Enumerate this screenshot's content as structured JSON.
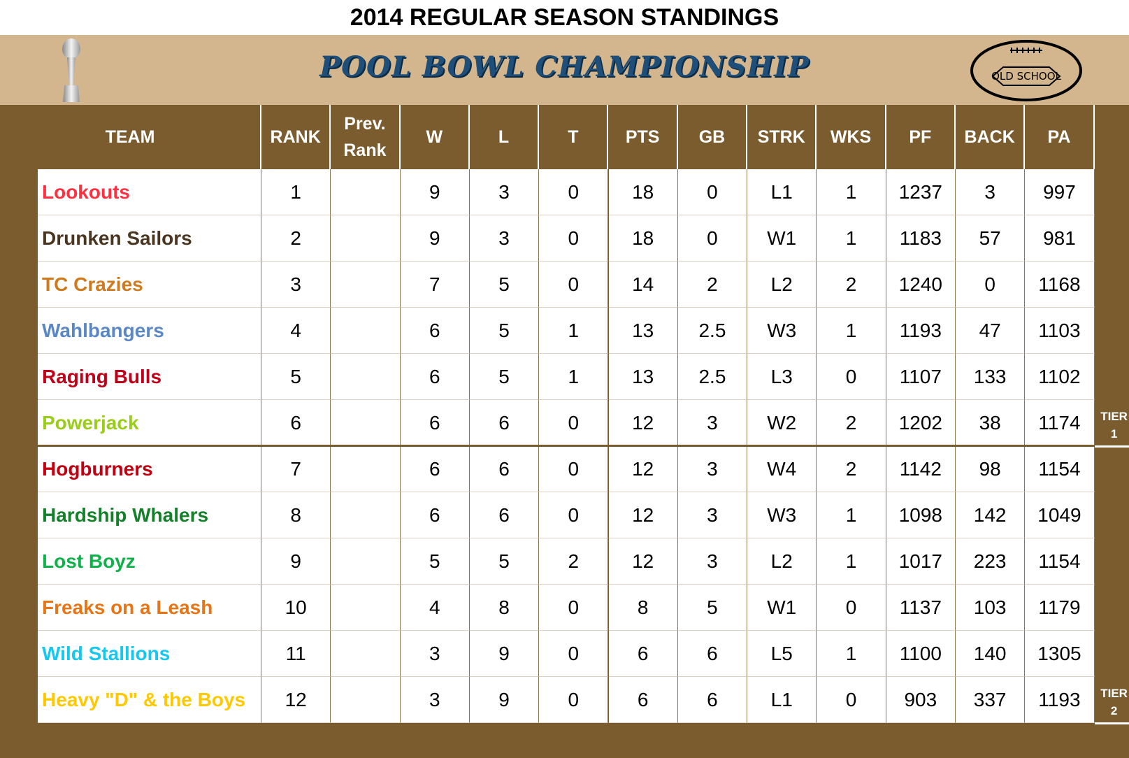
{
  "header": {
    "title": "2014 REGULAR SEASON STANDINGS",
    "banner": "POOL BOWL CHAMPIONSHIP",
    "logo_text": "OLD SCHOOL"
  },
  "table": {
    "columns": [
      "TEAM",
      "RANK",
      "Prev. Rank",
      "W",
      "L",
      "T",
      "PTS",
      "GB",
      "STRK",
      "WKS",
      "PF",
      "BACK",
      "PA"
    ],
    "rows": [
      {
        "team": "Lookouts",
        "color": "#ff3040",
        "values": [
          1,
          null,
          9,
          3,
          0,
          18,
          0,
          "L1",
          1,
          1237,
          3,
          997
        ]
      },
      {
        "team": "Drunken Sailors",
        "color": "#4a3520",
        "values": [
          2,
          null,
          9,
          3,
          0,
          18,
          0,
          "W1",
          1,
          1183,
          57,
          981
        ]
      },
      {
        "team": "TC Crazies",
        "color": "#d07a1e",
        "values": [
          3,
          null,
          7,
          5,
          0,
          14,
          2,
          "L2",
          2,
          1240,
          0,
          1168
        ]
      },
      {
        "team": "Wahlbangers",
        "color": "#5b87c5",
        "values": [
          4,
          null,
          6,
          5,
          1,
          13,
          2.5,
          "W3",
          1,
          1193,
          47,
          1103
        ]
      },
      {
        "team": "Raging Bulls",
        "color": "#c00018",
        "values": [
          5,
          null,
          6,
          5,
          1,
          13,
          2.5,
          "L3",
          0,
          1107,
          133,
          1102
        ]
      },
      {
        "team": "Powerjack",
        "color": "#9acd1a",
        "values": [
          6,
          null,
          6,
          6,
          0,
          12,
          3,
          "W2",
          2,
          1202,
          38,
          1174
        ]
      },
      {
        "team": "Hogburners",
        "color": "#c00010",
        "values": [
          7,
          null,
          6,
          6,
          0,
          12,
          3,
          "W4",
          2,
          1142,
          98,
          1154
        ]
      },
      {
        "team": "Hardship Whalers",
        "color": "#13802a",
        "values": [
          8,
          null,
          6,
          6,
          0,
          12,
          3,
          "W3",
          1,
          1098,
          142,
          1049
        ]
      },
      {
        "team": "Lost Boyz",
        "color": "#10b04a",
        "values": [
          9,
          null,
          5,
          5,
          2,
          12,
          3,
          "L2",
          1,
          1017,
          223,
          1154
        ]
      },
      {
        "team": "Freaks on a Leash",
        "color": "#e87515",
        "values": [
          10,
          null,
          4,
          8,
          0,
          8,
          5,
          "W1",
          0,
          1137,
          103,
          1179
        ]
      },
      {
        "team": "Wild Stallions",
        "color": "#16c8ee",
        "values": [
          11,
          null,
          3,
          9,
          0,
          6,
          6,
          "L5",
          1,
          1100,
          140,
          1305
        ]
      },
      {
        "team": "Heavy \"D\" & the Boys",
        "color": "#ffc800",
        "values": [
          12,
          null,
          3,
          9,
          0,
          6,
          6,
          "L1",
          0,
          903,
          337,
          1193
        ]
      }
    ],
    "tiers": [
      {
        "label": "TIER 1",
        "last_row": 6
      },
      {
        "label": "TIER 2",
        "last_row": 12
      }
    ]
  }
}
